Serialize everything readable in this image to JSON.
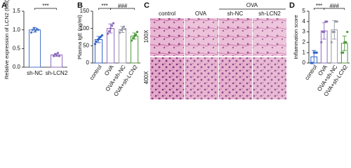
{
  "chart_data": [
    {
      "type": "bar",
      "panel": "A",
      "y_label": "Relative expression of LCN2 (fold)",
      "categories": [
        "sh-NC",
        "sh-LCN2"
      ],
      "values": [
        1.0,
        0.33
      ],
      "errors": [
        0.06,
        0.04
      ],
      "points": [
        [
          0.93,
          1.0,
          1.05,
          0.98,
          1.02,
          1.0
        ],
        [
          0.3,
          0.35,
          0.32,
          0.38,
          0.3
        ]
      ],
      "colors": [
        "#4a76c9",
        "#8e6bbf"
      ],
      "ylim": [
        0,
        1.5
      ],
      "yticks": [
        {
          "value": 0,
          "label": "0.0"
        },
        {
          "value": 0.5,
          "label": "0.5"
        },
        {
          "value": 1,
          "label": "1.0"
        },
        {
          "value": 1.5,
          "label": "1.5"
        }
      ],
      "annotations": [
        "***"
      ]
    },
    {
      "type": "bar",
      "panel": "B",
      "y_label": "Plasma IgE (ng/ml)",
      "categories": [
        "control",
        "OVA",
        "OVA+sh-NC",
        "OVA+sh-LCN2"
      ],
      "values": [
        68,
        100,
        97,
        78
      ],
      "errors": [
        9,
        13,
        9,
        9
      ],
      "points": [
        [
          55,
          62,
          68,
          72,
          76,
          80
        ],
        [
          85,
          92,
          100,
          108,
          115
        ],
        [
          88,
          95,
          100,
          105,
          98
        ],
        [
          65,
          72,
          78,
          82,
          90
        ]
      ],
      "colors": [
        "#2f62c8",
        "#8e6bbf",
        "#9a9aa8",
        "#4e9a3a"
      ],
      "ylim": [
        0,
        150
      ],
      "yticks": [
        0,
        50,
        100,
        150
      ],
      "annotations": [
        "***",
        "###"
      ]
    },
    {
      "type": "bar",
      "panel": "D",
      "y_label": "Inflammation score",
      "categories": [
        "control",
        "OVA",
        "OVA+sh-NC",
        "OVA+sh-LCN2"
      ],
      "values": [
        0.6,
        3.1,
        3.2,
        1.9
      ],
      "errors": [
        0.6,
        0.8,
        0.9,
        0.7
      ],
      "points": [
        [
          0,
          0,
          1,
          1,
          1
        ],
        [
          2,
          3,
          3,
          4,
          4
        ],
        [
          2,
          3,
          3,
          4,
          4
        ],
        [
          1,
          1,
          2,
          2,
          3
        ]
      ],
      "colors": [
        "#2f62c8",
        "#8e6bbf",
        "#9a9aa8",
        "#4e9a3a"
      ],
      "ylim": [
        0,
        5
      ],
      "yticks": [
        0,
        1,
        2,
        3,
        4,
        5
      ],
      "annotations": [
        "***",
        "###"
      ]
    }
  ],
  "panel_c": {
    "panel": "C",
    "columns": [
      "control",
      "OVA"
    ],
    "group": "OVA",
    "subcolumns": [
      "sh-NC",
      "sh-LCN2"
    ],
    "rows": [
      "100X",
      "400X"
    ]
  }
}
